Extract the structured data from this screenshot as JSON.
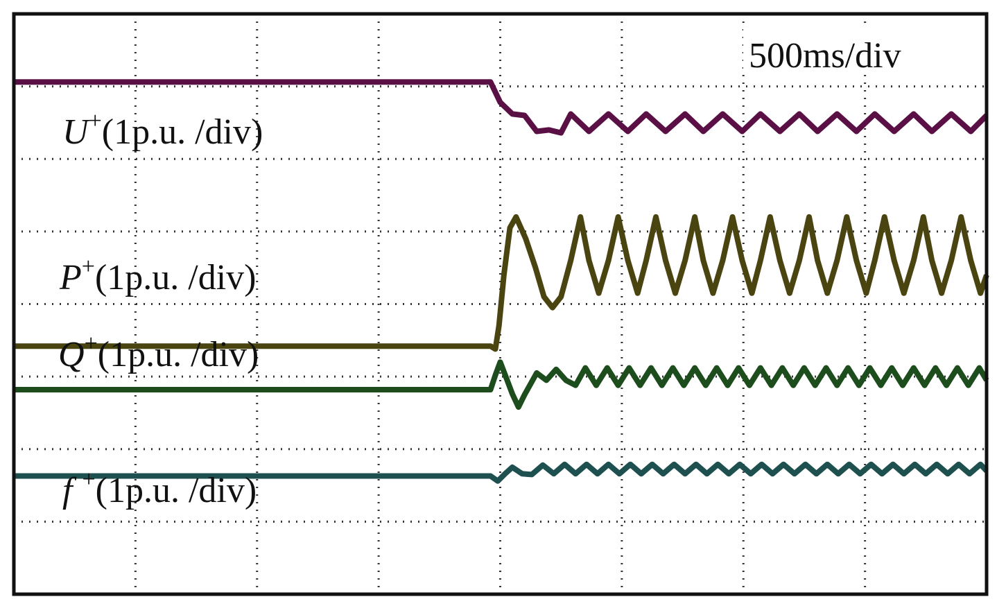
{
  "chart_data": {
    "type": "line",
    "title": "",
    "time_scale": "500ms/div",
    "x_divisions": 8,
    "y_divisions": 8,
    "grid": true,
    "grid_style": "dotted",
    "x_unit": "div",
    "y_unit": "div",
    "xlim": [
      0,
      8
    ],
    "ylim": [
      0,
      8
    ],
    "disturbance_time_div": 3.92,
    "colors": {
      "frame": "#111111",
      "grid": "#333333",
      "U": "#5a0f45",
      "P": "#4a4510",
      "Q": "#1d4d1d",
      "f": "#1f5050"
    },
    "series": [
      {
        "name": "U",
        "label_main": "U",
        "label_sup": "+",
        "label_scale": "(1p.u. /div)",
        "color_key": "U",
        "points": [
          [
            0,
            7.06
          ],
          [
            3.92,
            7.06
          ],
          [
            4.0,
            6.78
          ],
          [
            4.1,
            6.62
          ],
          [
            4.2,
            6.6
          ],
          [
            4.3,
            6.38
          ],
          [
            4.4,
            6.4
          ],
          [
            4.5,
            6.36
          ],
          [
            4.58,
            6.62
          ],
          [
            4.73,
            6.38
          ],
          [
            4.89,
            6.62
          ],
          [
            5.05,
            6.38
          ],
          [
            5.2,
            6.62
          ],
          [
            5.36,
            6.38
          ],
          [
            5.52,
            6.62
          ],
          [
            5.67,
            6.38
          ],
          [
            5.83,
            6.62
          ],
          [
            5.99,
            6.38
          ],
          [
            6.14,
            6.62
          ],
          [
            6.3,
            6.38
          ],
          [
            6.46,
            6.62
          ],
          [
            6.61,
            6.38
          ],
          [
            6.77,
            6.62
          ],
          [
            6.93,
            6.38
          ],
          [
            7.08,
            6.62
          ],
          [
            7.24,
            6.38
          ],
          [
            7.4,
            6.62
          ],
          [
            7.55,
            6.38
          ],
          [
            7.71,
            6.62
          ],
          [
            7.87,
            6.38
          ],
          [
            8.0,
            6.6
          ]
        ]
      },
      {
        "name": "P",
        "label_main": "P",
        "label_sup": "+",
        "label_scale": "(1p.u. /div)",
        "color_key": "P",
        "points": [
          [
            0,
            3.42
          ],
          [
            3.92,
            3.42
          ],
          [
            3.96,
            3.38
          ],
          [
            3.99,
            3.7
          ],
          [
            4.03,
            4.4
          ],
          [
            4.08,
            5.05
          ],
          [
            4.13,
            5.2
          ],
          [
            4.21,
            4.9
          ],
          [
            4.29,
            4.5
          ],
          [
            4.36,
            4.1
          ],
          [
            4.43,
            3.95
          ],
          [
            4.5,
            4.1
          ],
          [
            4.58,
            4.6
          ],
          [
            4.66,
            5.2
          ],
          [
            4.73,
            4.6
          ],
          [
            4.81,
            4.15
          ],
          [
            4.89,
            4.6
          ],
          [
            4.97,
            5.2
          ],
          [
            5.05,
            4.6
          ],
          [
            5.13,
            4.15
          ],
          [
            5.2,
            4.6
          ],
          [
            5.28,
            5.2
          ],
          [
            5.36,
            4.6
          ],
          [
            5.44,
            4.15
          ],
          [
            5.52,
            4.6
          ],
          [
            5.6,
            5.2
          ],
          [
            5.67,
            4.6
          ],
          [
            5.75,
            4.15
          ],
          [
            5.83,
            4.6
          ],
          [
            5.91,
            5.2
          ],
          [
            5.99,
            4.6
          ],
          [
            6.07,
            4.15
          ],
          [
            6.14,
            4.6
          ],
          [
            6.22,
            5.2
          ],
          [
            6.3,
            4.6
          ],
          [
            6.38,
            4.15
          ],
          [
            6.46,
            4.6
          ],
          [
            6.54,
            5.2
          ],
          [
            6.61,
            4.6
          ],
          [
            6.69,
            4.15
          ],
          [
            6.77,
            4.6
          ],
          [
            6.85,
            5.2
          ],
          [
            6.93,
            4.6
          ],
          [
            7.01,
            4.15
          ],
          [
            7.08,
            4.6
          ],
          [
            7.16,
            5.2
          ],
          [
            7.24,
            4.6
          ],
          [
            7.32,
            4.15
          ],
          [
            7.4,
            4.6
          ],
          [
            7.48,
            5.2
          ],
          [
            7.55,
            4.6
          ],
          [
            7.63,
            4.15
          ],
          [
            7.71,
            4.6
          ],
          [
            7.79,
            5.2
          ],
          [
            7.87,
            4.6
          ],
          [
            7.95,
            4.15
          ],
          [
            8.0,
            4.4
          ]
        ]
      },
      {
        "name": "Q",
        "label_main": "Q",
        "label_sup": "+",
        "label_scale": "(1p.u. /div)",
        "color_key": "Q",
        "points": [
          [
            0,
            2.82
          ],
          [
            3.92,
            2.82
          ],
          [
            3.96,
            3.02
          ],
          [
            4.0,
            3.2
          ],
          [
            4.05,
            2.98
          ],
          [
            4.1,
            2.76
          ],
          [
            4.15,
            2.58
          ],
          [
            4.2,
            2.75
          ],
          [
            4.3,
            3.05
          ],
          [
            4.38,
            2.95
          ],
          [
            4.46,
            3.1
          ],
          [
            4.54,
            2.95
          ],
          [
            4.62,
            2.88
          ],
          [
            4.7,
            3.12
          ],
          [
            4.79,
            2.88
          ],
          [
            4.88,
            3.12
          ],
          [
            4.97,
            2.88
          ],
          [
            5.06,
            3.12
          ],
          [
            5.15,
            2.88
          ],
          [
            5.24,
            3.12
          ],
          [
            5.33,
            2.88
          ],
          [
            5.42,
            3.12
          ],
          [
            5.51,
            2.88
          ],
          [
            5.6,
            3.12
          ],
          [
            5.69,
            2.88
          ],
          [
            5.78,
            3.12
          ],
          [
            5.87,
            2.88
          ],
          [
            5.96,
            3.12
          ],
          [
            6.05,
            2.88
          ],
          [
            6.14,
            3.12
          ],
          [
            6.23,
            2.88
          ],
          [
            6.32,
            3.12
          ],
          [
            6.41,
            2.88
          ],
          [
            6.5,
            3.12
          ],
          [
            6.59,
            2.88
          ],
          [
            6.68,
            3.12
          ],
          [
            6.77,
            2.88
          ],
          [
            6.86,
            3.12
          ],
          [
            6.95,
            2.88
          ],
          [
            7.04,
            3.12
          ],
          [
            7.13,
            2.88
          ],
          [
            7.22,
            3.12
          ],
          [
            7.31,
            2.88
          ],
          [
            7.4,
            3.12
          ],
          [
            7.49,
            2.88
          ],
          [
            7.58,
            3.12
          ],
          [
            7.67,
            2.88
          ],
          [
            7.76,
            3.12
          ],
          [
            7.85,
            2.88
          ],
          [
            7.94,
            3.12
          ],
          [
            8.0,
            2.95
          ]
        ]
      },
      {
        "name": "f",
        "label_main": "f",
        "label_sup": "+",
        "label_scale": "(1p.u. /div)",
        "color_key": "f",
        "points": [
          [
            0,
            1.63
          ],
          [
            3.92,
            1.63
          ],
          [
            3.98,
            1.56
          ],
          [
            4.04,
            1.66
          ],
          [
            4.1,
            1.75
          ],
          [
            4.18,
            1.66
          ],
          [
            4.26,
            1.65
          ],
          [
            4.35,
            1.78
          ],
          [
            4.44,
            1.66
          ],
          [
            4.53,
            1.79
          ],
          [
            4.62,
            1.66
          ],
          [
            4.71,
            1.79
          ],
          [
            4.8,
            1.66
          ],
          [
            4.89,
            1.79
          ],
          [
            4.98,
            1.66
          ],
          [
            5.07,
            1.79
          ],
          [
            5.16,
            1.66
          ],
          [
            5.25,
            1.79
          ],
          [
            5.34,
            1.66
          ],
          [
            5.43,
            1.79
          ],
          [
            5.52,
            1.66
          ],
          [
            5.61,
            1.79
          ],
          [
            5.7,
            1.66
          ],
          [
            5.79,
            1.79
          ],
          [
            5.88,
            1.66
          ],
          [
            5.97,
            1.79
          ],
          [
            6.06,
            1.66
          ],
          [
            6.15,
            1.79
          ],
          [
            6.24,
            1.66
          ],
          [
            6.33,
            1.79
          ],
          [
            6.42,
            1.66
          ],
          [
            6.51,
            1.79
          ],
          [
            6.6,
            1.66
          ],
          [
            6.69,
            1.79
          ],
          [
            6.78,
            1.66
          ],
          [
            6.87,
            1.79
          ],
          [
            6.96,
            1.66
          ],
          [
            7.05,
            1.79
          ],
          [
            7.14,
            1.66
          ],
          [
            7.23,
            1.79
          ],
          [
            7.32,
            1.66
          ],
          [
            7.41,
            1.79
          ],
          [
            7.5,
            1.66
          ],
          [
            7.59,
            1.79
          ],
          [
            7.68,
            1.66
          ],
          [
            7.77,
            1.79
          ],
          [
            7.86,
            1.66
          ],
          [
            7.95,
            1.79
          ],
          [
            8.0,
            1.7
          ]
        ]
      }
    ]
  }
}
